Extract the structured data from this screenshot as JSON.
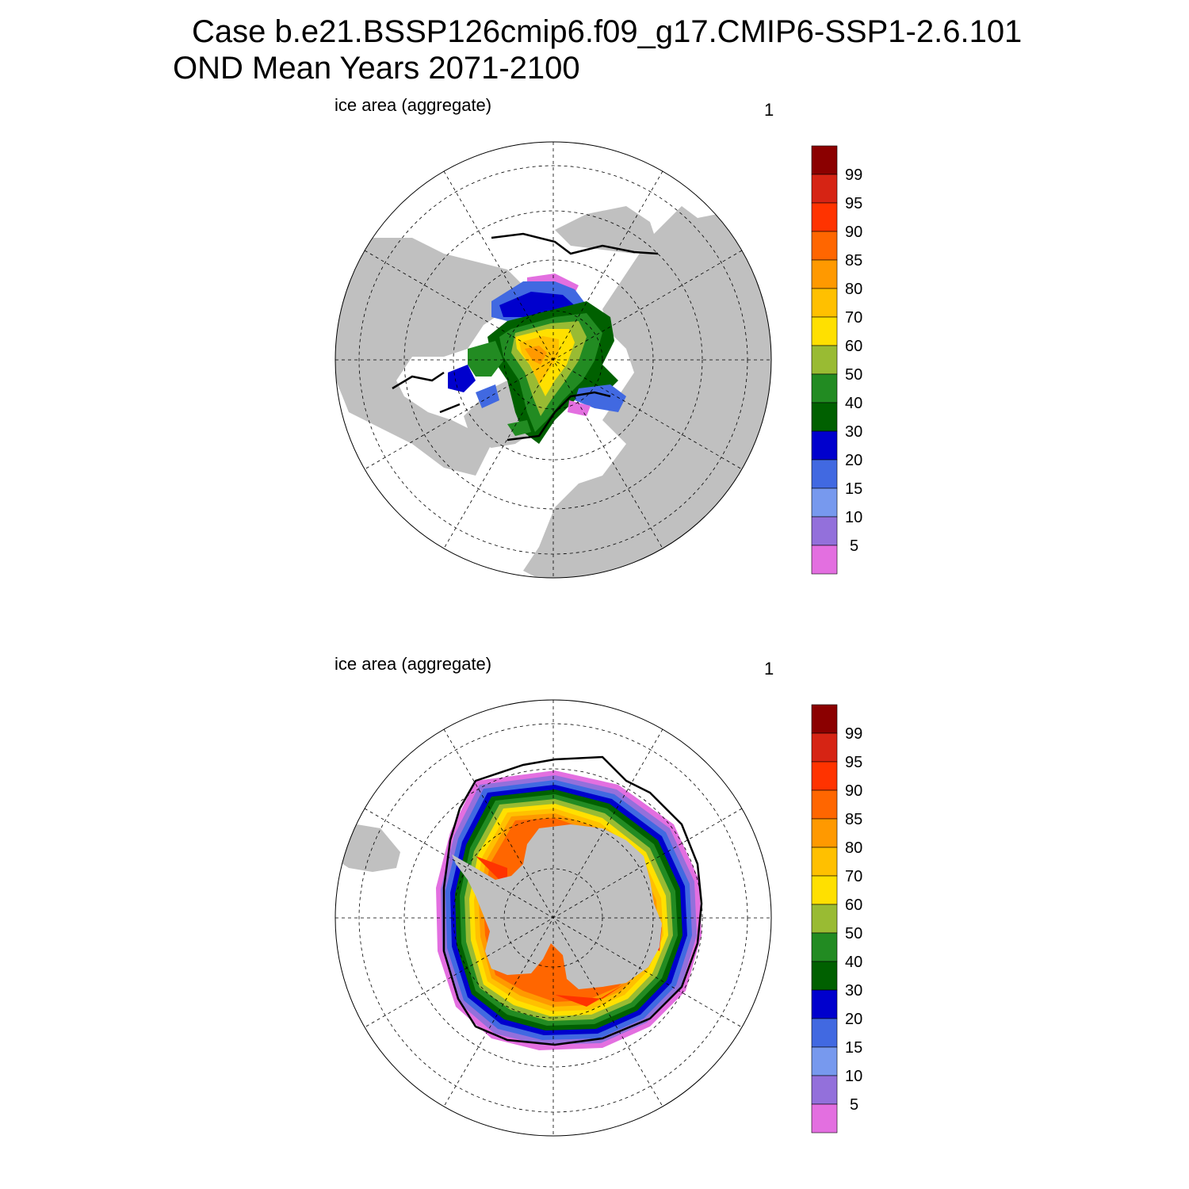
{
  "title_line1": "Case b.e21.BSSP126cmip6.f09_g17.CMIP6-SSP1-2.6.101",
  "title_line2": "OND Mean   Years 2071-2100",
  "panels": [
    {
      "left_label": "ice area  (aggregate)",
      "right_label": "1"
    },
    {
      "left_label": "ice area  (aggregate)",
      "right_label": "1"
    }
  ],
  "colorbar": {
    "labels": [
      "99",
      "95",
      "90",
      "85",
      "80",
      "70",
      "60",
      "50",
      "40",
      "30",
      "20",
      "15",
      "10",
      "5"
    ],
    "colors": [
      "#8b0000",
      "#d62414",
      "#ff3300",
      "#ff6600",
      "#ff9900",
      "#ffc000",
      "#ffe000",
      "#99bb33",
      "#228b22",
      "#006000",
      "#0000cd",
      "#4169e1",
      "#7799ee",
      "#9370db",
      "#e36fe0"
    ]
  },
  "colors": {
    "land": "#c0c0c0",
    "ocean": "#ffffff",
    "ice_edge": "#000000"
  }
}
